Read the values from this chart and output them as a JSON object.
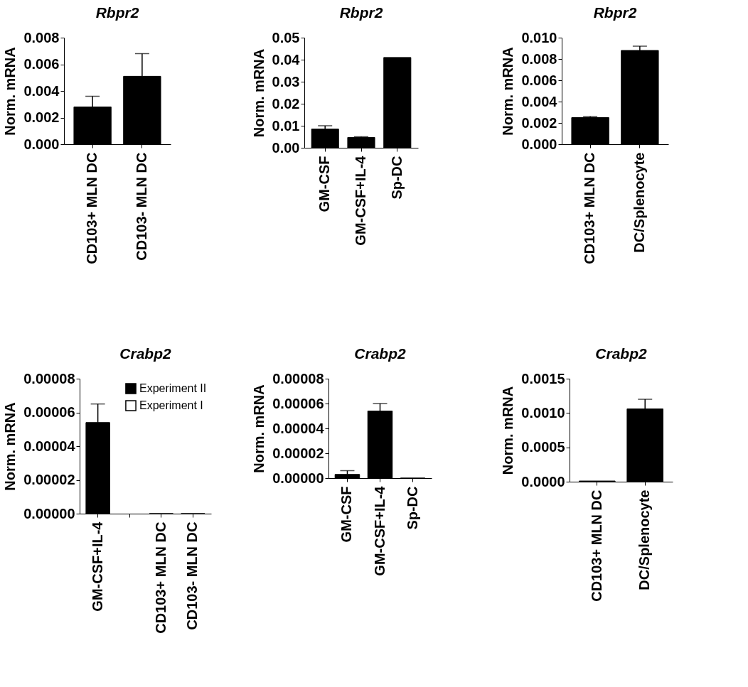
{
  "chart_data": [
    {
      "type": "bar",
      "title": "Rbpr2",
      "ylabel": "Norm. mRNA",
      "categories": [
        "CD103+ MLN DC",
        "CD103- MLN DC"
      ],
      "values": [
        0.0028,
        0.0051
      ],
      "errors": [
        [
          0.0028,
          0.0036
        ],
        [
          0.0051,
          0.0068
        ]
      ],
      "color": "#000000",
      "ylim": [
        0,
        0.008
      ],
      "yticks": [
        {
          "value": 0,
          "label": "0.000"
        },
        0.002,
        0.004,
        0.006,
        0.008
      ]
    },
    {
      "type": "bar",
      "title": "Rbpr2",
      "ylabel": "Norm. mRNA",
      "categories": [
        "GM-CSF",
        "GM-CSF+IL-4",
        "Sp-DC"
      ],
      "values": [
        0.0085,
        0.0047,
        0.041
      ],
      "errors": [
        [
          0.0085,
          0.01
        ],
        [
          0.0047,
          0.005
        ],
        null
      ],
      "color": "#000000",
      "ylim": [
        0,
        0.05
      ],
      "yticks": [
        {
          "value": 0,
          "label": "0.00"
        },
        0.01,
        0.02,
        0.03,
        0.04,
        0.05
      ]
    },
    {
      "type": "bar",
      "title": "Rbpr2",
      "ylabel": "Norm. mRNA",
      "categories": [
        "CD103+ MLN DC",
        "DC/Splenocyte"
      ],
      "values": [
        0.0025,
        0.0088
      ],
      "errors": [
        [
          0.0025,
          0.0026
        ],
        [
          0.0088,
          0.0092
        ]
      ],
      "color": "#000000",
      "ylim": [
        0,
        0.01
      ],
      "yticks": [
        {
          "value": 0,
          "label": "0.000"
        },
        0.002,
        0.004,
        0.006,
        0.008,
        {
          "value": 0.01,
          "label": "0.010"
        }
      ]
    },
    {
      "type": "bar",
      "title": "Crabp2",
      "ylabel": "Norm. mRNA",
      "categories": [
        "GM-CSF+IL-4",
        null,
        "CD103+ MLN DC",
        "CD103- MLN DC"
      ],
      "series": [
        {
          "name": "Experiment II",
          "color": "#000000",
          "values": [
            5.4e-05,
            null,
            null,
            null
          ],
          "errors": [
            [
              5.4e-05,
              6.5e-05
            ],
            null,
            null,
            null
          ]
        },
        {
          "name": "Experiment I",
          "color": "#ffffff",
          "values": [
            null,
            null,
            0,
            0
          ]
        }
      ],
      "legend": "top right",
      "ylim": [
        0,
        8e-05
      ],
      "yticks": [
        {
          "value": 0,
          "label": "0.00000"
        },
        {
          "value": 2e-05,
          "label": "0.00002"
        },
        {
          "value": 4e-05,
          "label": "0.00004"
        },
        {
          "value": 6e-05,
          "label": "0.00006"
        },
        {
          "value": 8e-05,
          "label": "0.00008"
        }
      ]
    },
    {
      "type": "bar",
      "title": "Crabp2",
      "ylabel": "Norm. mRNA",
      "categories": [
        "GM-CSF",
        "GM-CSF+IL-4",
        "Sp-DC"
      ],
      "values": [
        3e-06,
        5.4e-05,
        0
      ],
      "errors": [
        [
          3e-06,
          6e-06
        ],
        [
          5.4e-05,
          6e-05
        ],
        null
      ],
      "color": "#000000",
      "ylim": [
        0,
        8e-05
      ],
      "yticks": [
        {
          "value": 0,
          "label": "0.00000"
        },
        {
          "value": 2e-05,
          "label": "0.00002"
        },
        {
          "value": 4e-05,
          "label": "0.00004"
        },
        {
          "value": 6e-05,
          "label": "0.00006"
        },
        {
          "value": 8e-05,
          "label": "0.00008"
        }
      ]
    },
    {
      "type": "bar",
      "title": "Crabp2",
      "ylabel": "Norm. mRNA",
      "categories": [
        "CD103+ MLN DC",
        "DC/Splenocyte"
      ],
      "values": [
        1e-05,
        0.00106
      ],
      "errors": [
        null,
        [
          0.00106,
          0.0012
        ]
      ],
      "color": "#000000",
      "ylim": [
        0,
        0.0015
      ],
      "yticks": [
        {
          "value": 0,
          "label": "0.0000"
        },
        0.0005,
        {
          "value": 0.001,
          "label": "0.0010"
        },
        0.0015
      ]
    }
  ]
}
